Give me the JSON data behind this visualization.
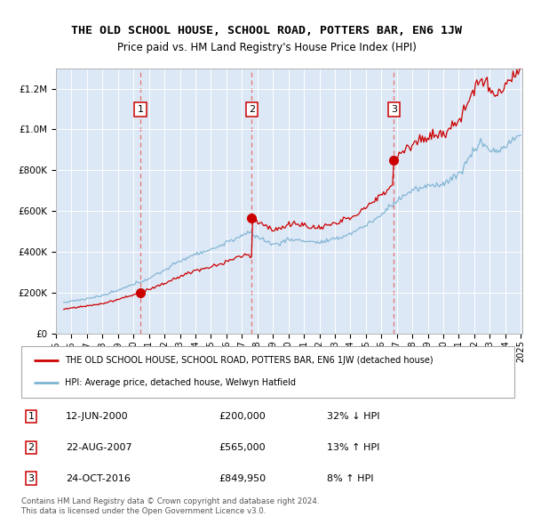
{
  "title": "THE OLD SCHOOL HOUSE, SCHOOL ROAD, POTTERS BAR, EN6 1JW",
  "subtitle": "Price paid vs. HM Land Registry's House Price Index (HPI)",
  "legend_line1": "THE OLD SCHOOL HOUSE, SCHOOL ROAD, POTTERS BAR, EN6 1JW (detached house)",
  "legend_line2": "HPI: Average price, detached house, Welwyn Hatfield",
  "transactions": [
    {
      "num": 1,
      "date_decimal": 2000.45,
      "price": 200000,
      "label": "12-JUN-2000",
      "amount": "£200,000",
      "pct": "32% ↓ HPI"
    },
    {
      "num": 2,
      "date_decimal": 2007.64,
      "price": 565000,
      "label": "22-AUG-2007",
      "amount": "£565,000",
      "pct": "13% ↑ HPI"
    },
    {
      "num": 3,
      "date_decimal": 2016.81,
      "price": 849950,
      "label": "24-OCT-2016",
      "amount": "£849,950",
      "pct": "8% ↑ HPI"
    }
  ],
  "price_color": "#cc0000",
  "hpi_color": "#7fb3d3",
  "vline_color": "#e87070",
  "background_color": "#dce8f5",
  "plot_bg": "#ffffff",
  "ylim_max": 1300000,
  "ytick_step": 200000,
  "xstart": 1995.5,
  "xend": 2025.1,
  "footer": "Contains HM Land Registry data © Crown copyright and database right 2024.\nThis data is licensed under the Open Government Licence v3.0."
}
